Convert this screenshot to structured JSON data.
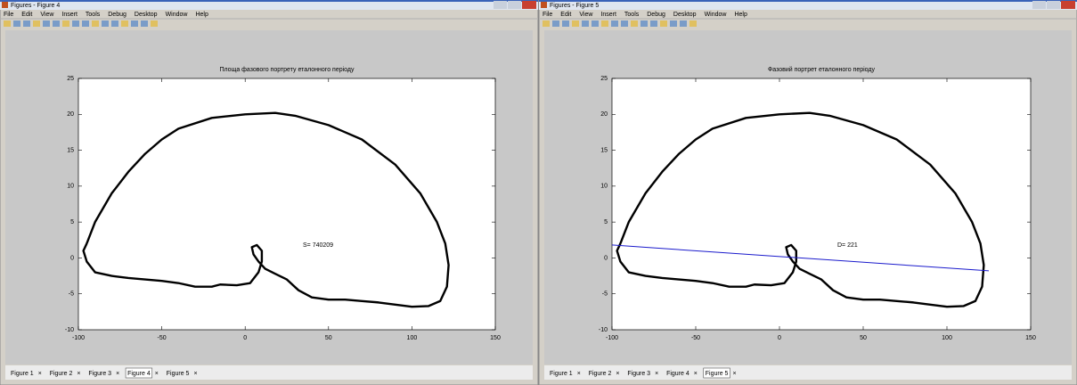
{
  "windows": [
    {
      "title": "Figures - Figure 4",
      "menu": [
        "File",
        "Edit",
        "View",
        "Insert",
        "Tools",
        "Debug",
        "Desktop",
        "Window",
        "Help"
      ],
      "tabs": [
        "Figure 1",
        "Figure 2",
        "Figure 3",
        "Figure 4",
        "Figure 5"
      ],
      "active_tab": 3,
      "chart": {
        "type": "line",
        "title": "Площа фазового портрету еталонного періоду",
        "x": [
          -95,
          -90,
          -80,
          -70,
          -60,
          -50,
          -40,
          -20,
          0,
          18,
          30,
          50,
          70,
          90,
          105,
          115,
          120,
          122,
          121,
          117,
          110,
          100,
          90,
          80,
          70,
          60,
          50,
          40,
          32,
          25,
          18,
          12,
          8,
          5,
          4,
          7,
          10,
          10,
          8,
          3,
          -5,
          -15,
          -20,
          -30,
          -40,
          -50,
          -60,
          -70,
          -80,
          -90,
          -95,
          -97,
          -95
        ],
        "y": [
          2,
          5,
          9,
          12,
          14.5,
          16.5,
          18,
          19.5,
          20,
          20.2,
          19.8,
          18.5,
          16.5,
          13,
          9,
          5,
          2,
          -1,
          -4,
          -6,
          -6.7,
          -6.8,
          -6.5,
          -6.2,
          -6,
          -5.8,
          -5.8,
          -5.5,
          -4.5,
          -3,
          -2.2,
          -1.5,
          -0.5,
          0.5,
          1.5,
          1.8,
          1,
          -0.5,
          -2,
          -3.5,
          -3.8,
          -3.7,
          -4,
          -4,
          -3.5,
          -3.2,
          -3,
          -2.8,
          -2.5,
          -2,
          -0.5,
          1,
          2
        ],
        "color": "#000000",
        "annotation": "S= 740209",
        "xlim": [
          -100,
          150
        ],
        "xticks": [
          -100,
          -50,
          0,
          50,
          100,
          150
        ],
        "ylim": [
          -10,
          25
        ],
        "yticks": [
          -10,
          -5,
          0,
          5,
          10,
          15,
          20,
          25
        ]
      }
    },
    {
      "title": "Figures - Figure 5",
      "menu": [
        "File",
        "Edit",
        "View",
        "Insert",
        "Tools",
        "Debug",
        "Desktop",
        "Window",
        "Help"
      ],
      "tabs": [
        "Figure 1",
        "Figure 2",
        "Figure 3",
        "Figure 4",
        "Figure 5"
      ],
      "active_tab": 4,
      "chart": {
        "type": "line",
        "title": "Фазовий портрет еталонного періоду",
        "x": [
          -95,
          -90,
          -80,
          -70,
          -60,
          -50,
          -40,
          -20,
          0,
          18,
          30,
          50,
          70,
          90,
          105,
          115,
          120,
          122,
          121,
          117,
          110,
          100,
          90,
          80,
          70,
          60,
          50,
          40,
          32,
          25,
          18,
          12,
          8,
          5,
          4,
          7,
          10,
          10,
          8,
          3,
          -5,
          -15,
          -20,
          -30,
          -40,
          -50,
          -60,
          -70,
          -80,
          -90,
          -95,
          -97,
          -95
        ],
        "y": [
          2,
          5,
          9,
          12,
          14.5,
          16.5,
          18,
          19.5,
          20,
          20.2,
          19.8,
          18.5,
          16.5,
          13,
          9,
          5,
          2,
          -1,
          -4,
          -6,
          -6.7,
          -6.8,
          -6.5,
          -6.2,
          -6,
          -5.8,
          -5.8,
          -5.5,
          -4.5,
          -3,
          -2.2,
          -1.5,
          -0.5,
          0.5,
          1.5,
          1.8,
          1,
          -0.5,
          -2,
          -3.5,
          -3.8,
          -3.7,
          -4,
          -4,
          -3.5,
          -3.2,
          -3,
          -2.8,
          -2.5,
          -2,
          -0.5,
          1,
          2
        ],
        "color": "#000000",
        "annotation": "D= 221",
        "line": {
          "x": [
            -100,
            125
          ],
          "y": [
            1.8,
            -1.8
          ],
          "color": "#1a1acc"
        },
        "xlim": [
          -100,
          150
        ],
        "xticks": [
          -100,
          -50,
          0,
          50,
          100,
          150
        ],
        "ylim": [
          -10,
          25
        ],
        "yticks": [
          -10,
          -5,
          0,
          5,
          10,
          15,
          20,
          25
        ]
      }
    }
  ]
}
